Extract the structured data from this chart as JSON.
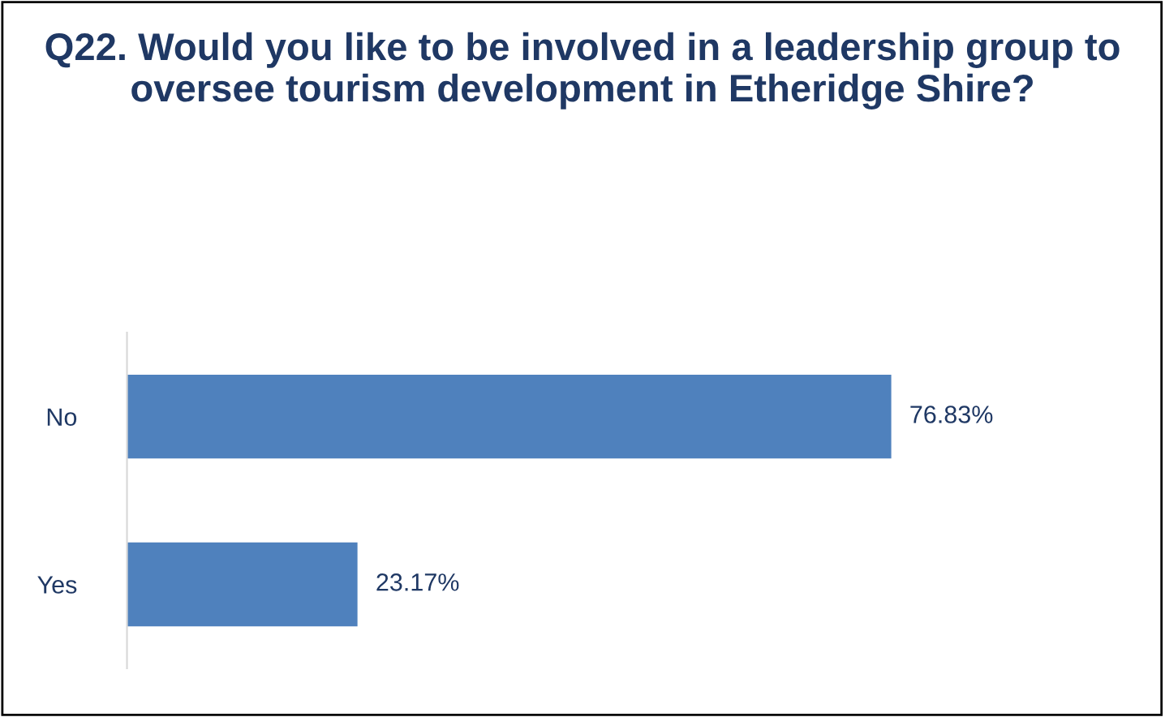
{
  "chart_data": {
    "type": "bar",
    "orientation": "horizontal",
    "title": "Q22. Would you like to be involved in a leadership group to oversee tourism development in Etheridge Shire?",
    "categories": [
      "No",
      "Yes"
    ],
    "values": [
      76.83,
      23.17
    ],
    "value_labels": [
      "76.83%",
      "23.17%"
    ],
    "color": "#4f81bd",
    "grid": false,
    "legend": false
  }
}
